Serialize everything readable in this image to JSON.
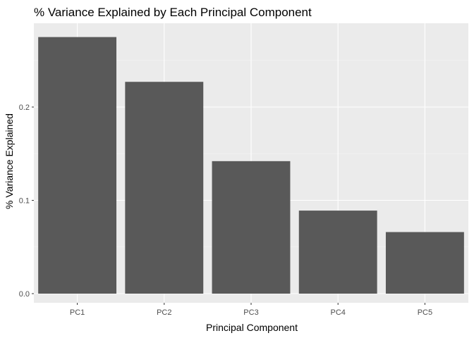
{
  "chart_data": {
    "type": "bar",
    "title": "% Variance Explained by Each Principal Component",
    "xlabel": "Principal Component",
    "ylabel": "% Variance Explained",
    "categories": [
      "PC1",
      "PC2",
      "PC3",
      "PC4",
      "PC5"
    ],
    "values": [
      0.275,
      0.227,
      0.142,
      0.089,
      0.066
    ],
    "y_ticks": [
      0.0,
      0.1,
      0.2
    ],
    "y_tick_labels": [
      "0.0",
      "0.1",
      "0.2"
    ],
    "ylim": [
      0,
      0.29
    ],
    "grid": true,
    "colors": {
      "bar": "#595959",
      "panel": "#ebebeb",
      "grid_major": "#ffffff",
      "grid_minor": "#f5f5f5",
      "tick_text": "#4d4d4d"
    }
  }
}
